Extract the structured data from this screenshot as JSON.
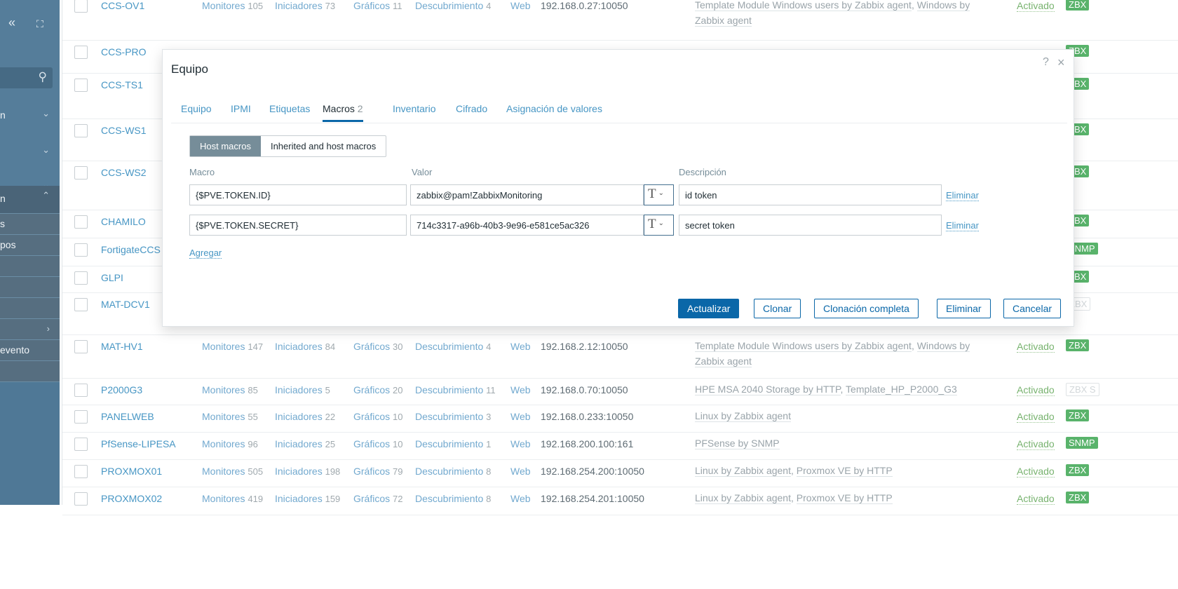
{
  "sidebar": {
    "collapse_icon": "double-chevron-left",
    "kiosk_icon": "fullscreen",
    "search_icon": "magnifier",
    "items": [
      {
        "label": "n",
        "chevron": "⌄",
        "open": false
      },
      {
        "label": "",
        "chevron": "⌄",
        "open": false
      },
      {
        "label": "",
        "chevron": "⌄",
        "open": false
      },
      {
        "label": "",
        "chevron": "⌄",
        "open": false
      },
      {
        "label": "n",
        "chevron": "⌃",
        "open": true
      }
    ],
    "subitems": [
      {
        "label": "s",
        "chevron": ""
      },
      {
        "label": "pos",
        "chevron": ""
      },
      {
        "label": "",
        "chevron": ""
      },
      {
        "label": "",
        "chevron": ""
      },
      {
        "label": "",
        "chevron": ""
      },
      {
        "label": "",
        "chevron": "›"
      },
      {
        "label": "evento",
        "chevron": ""
      },
      {
        "label": "",
        "chevron": ""
      }
    ]
  },
  "hosts": [
    {
      "name": "CCS-OV1",
      "monitores": "105",
      "iniciadores": "73",
      "graficos": "11",
      "descubrimiento": "4",
      "web": "Web",
      "ip": "192.168.0.27:10050",
      "templates": [
        "Template Module Windows users by Zabbix agent",
        "Windows by Zabbix agent"
      ],
      "status": "Activado",
      "badge": "ZBX",
      "badge_on": true
    },
    {
      "name": "CCS-PRO",
      "badge": "ZBX",
      "badge_on": true
    },
    {
      "name": "CCS-TS1",
      "badge": "ZBX",
      "badge_on": true
    },
    {
      "name": "CCS-WS1",
      "badge": "ZBX",
      "badge_on": true
    },
    {
      "name": "CCS-WS2",
      "badge": "ZBX",
      "badge_on": true
    },
    {
      "name": "CHAMILO",
      "badge": "ZBX",
      "badge_on": true
    },
    {
      "name": "FortigateCCS",
      "badge": "SNMP",
      "badge_on": true
    },
    {
      "name": "GLPI",
      "badge": "ZBX",
      "badge_on": true
    },
    {
      "name": "MAT-DCV1",
      "badge": "ZBX",
      "badge_on": false
    },
    {
      "name": "MAT-HV1",
      "monitores": "147",
      "iniciadores": "84",
      "graficos": "30",
      "descubrimiento": "4",
      "web": "Web",
      "ip": "192.168.2.12:10050",
      "templates": [
        "Template Module Windows users by Zabbix agent",
        "Windows by Zabbix agent"
      ],
      "status": "Activado",
      "badge": "ZBX",
      "badge_on": true
    },
    {
      "name": "P2000G3",
      "monitores": "85",
      "iniciadores": "5",
      "graficos": "20",
      "descubrimiento": "11",
      "web": "Web",
      "ip": "192.168.0.70:10050",
      "templates": [
        "HPE MSA 2040 Storage by HTTP",
        "Template_HP_P2000_G3"
      ],
      "status": "Activado",
      "badge": "ZBX S",
      "badge_on": false
    },
    {
      "name": "PANELWEB",
      "monitores": "55",
      "iniciadores": "22",
      "graficos": "10",
      "descubrimiento": "3",
      "web": "Web",
      "ip": "192.168.0.233:10050",
      "templates": [
        "Linux by Zabbix agent"
      ],
      "status": "Activado",
      "badge": "ZBX",
      "badge_on": true
    },
    {
      "name": "PfSense-LIPESA",
      "monitores": "96",
      "iniciadores": "25",
      "graficos": "10",
      "descubrimiento": "1",
      "web": "Web",
      "ip": "192.168.200.100:161",
      "templates": [
        "PFSense by SNMP"
      ],
      "status": "Activado",
      "badge": "SNMP",
      "badge_on": true
    },
    {
      "name": "PROXMOX01",
      "monitores": "505",
      "iniciadores": "198",
      "graficos": "79",
      "descubrimiento": "8",
      "web": "Web",
      "ip": "192.168.254.200:10050",
      "templates": [
        "Linux by Zabbix agent",
        "Proxmox VE by HTTP"
      ],
      "status": "Activado",
      "badge": "ZBX",
      "badge_on": true
    },
    {
      "name": "PROXMOX02",
      "monitores": "419",
      "iniciadores": "159",
      "graficos": "72",
      "descubrimiento": "8",
      "web": "Web",
      "ip": "192.168.254.201:10050",
      "templates": [
        "Linux by Zabbix agent",
        "Proxmox VE by HTTP"
      ],
      "status": "Activado",
      "badge": "ZBX",
      "badge_on": true
    }
  ],
  "labels": {
    "monitores": "Monitores",
    "iniciadores": "Iniciadores",
    "graficos": "Gráficos",
    "descubrimiento": "Descubrimiento"
  },
  "modal": {
    "title": "Equipo",
    "help": "?",
    "close": "×",
    "tabs": [
      {
        "label": "Equipo"
      },
      {
        "label": "IPMI"
      },
      {
        "label": "Etiquetas"
      },
      {
        "label": "Macros",
        "count": "2",
        "active": true
      },
      {
        "label": "Inventario"
      },
      {
        "label": "Cifrado"
      },
      {
        "label": "Asignación de valores"
      }
    ],
    "segments": {
      "host": "Host macros",
      "inherited": "Inherited and host macros",
      "selected": "Host macros"
    },
    "columns": {
      "macro": "Macro",
      "valor": "Valor",
      "descripcion": "Descripción"
    },
    "macros": [
      {
        "macro": "{$PVE.TOKEN.ID}",
        "value": "zabbix@pam!ZabbixMonitoring",
        "type": "T",
        "description": "id token",
        "remove": "Eliminar"
      },
      {
        "macro": "{$PVE.TOKEN.SECRET}",
        "value": "714c3317-a96b-40b3-9e96-e581ce5ac326",
        "type": "T",
        "description": "secret token",
        "remove": "Eliminar"
      }
    ],
    "add": "Agregar",
    "buttons": {
      "update": "Actualizar",
      "clone": "Clonar",
      "full_clone": "Clonación completa",
      "delete": "Eliminar",
      "cancel": "Cancelar"
    }
  },
  "colors": {
    "sidebar": "#4f7896",
    "link": "#4796c4",
    "primary": "#0a67a8",
    "enabled": "#78b36f",
    "badge": "#59b36b"
  }
}
